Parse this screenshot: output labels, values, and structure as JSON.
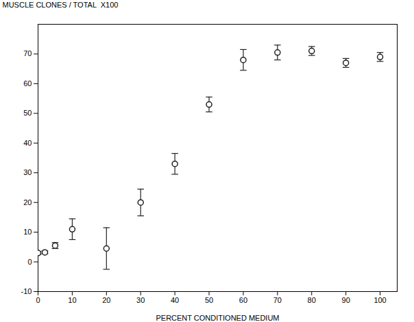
{
  "chart_data": {
    "type": "scatter",
    "x": [
      0,
      2,
      5,
      10,
      20,
      30,
      40,
      50,
      60,
      70,
      80,
      90,
      100
    ],
    "values": [
      3.0,
      3.2,
      5.5,
      11.0,
      4.5,
      20.0,
      33.0,
      53.0,
      68.0,
      70.5,
      71.0,
      67.0,
      69.0
    ],
    "yerr": [
      0.5,
      0.5,
      1.0,
      3.5,
      7.0,
      4.5,
      3.5,
      2.5,
      3.5,
      2.5,
      1.5,
      1.5,
      1.5
    ],
    "xlabel": "PERCENT CONDITIONED MEDIUM",
    "ylabel": "MUSCLE CLONES / TOTAL  X100",
    "xlim": [
      0,
      105
    ],
    "ylim": [
      -10,
      80
    ],
    "xticks": [
      0,
      10,
      20,
      30,
      40,
      50,
      60,
      70,
      80,
      90,
      100
    ],
    "yticks": [
      -10,
      0,
      10,
      20,
      30,
      40,
      50,
      60,
      70
    ],
    "marker": "circle",
    "color": "#222222",
    "grid": false
  }
}
